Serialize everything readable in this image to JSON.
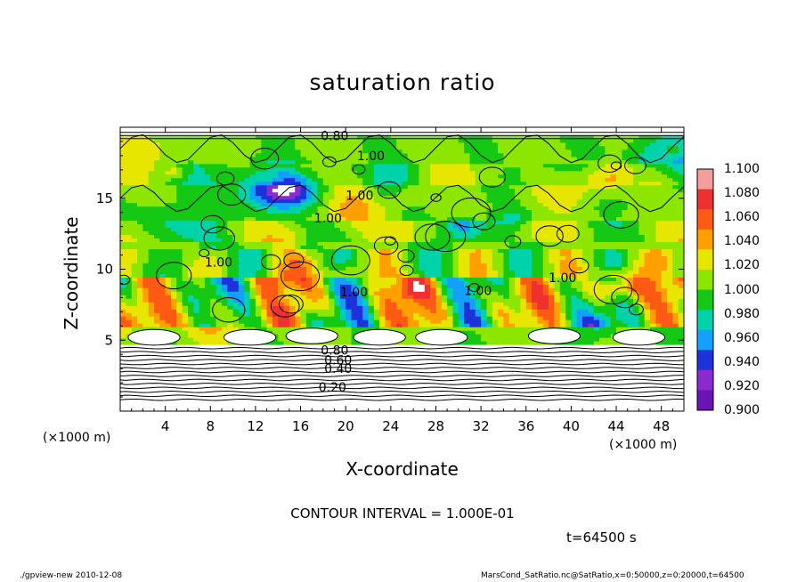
{
  "chart_data": {
    "type": "heatmap",
    "title": "saturation ratio",
    "xlabel": "X-coordinate",
    "ylabel": "Z-coordinate",
    "x_unit": "(×1000 m)",
    "xlim": [
      0,
      50
    ],
    "ylim": [
      0,
      20
    ],
    "x_ticks": [
      4,
      8,
      12,
      16,
      20,
      24,
      28,
      32,
      36,
      40,
      44,
      48
    ],
    "y_ticks": [
      5,
      10,
      15
    ],
    "colorbar": {
      "levels": [
        "1.100",
        "1.080",
        "1.060",
        "1.040",
        "1.020",
        "1.000",
        "0.980",
        "0.960",
        "0.940",
        "0.920",
        "0.900"
      ],
      "colors": [
        "#f59c9c",
        "#ee3030",
        "#ff5a14",
        "#ffa000",
        "#e6e600",
        "#8ce600",
        "#14c814",
        "#00d2aa",
        "#14a0ff",
        "#1e32dc",
        "#8c2ad2",
        "#6a14b4"
      ]
    },
    "contour_labels": [
      "0.80",
      "1.00",
      "1.00",
      "1.00",
      "1.00",
      "1.00",
      "1.00",
      "1.00",
      "0.80",
      "0.60",
      "0.40",
      "0.20"
    ],
    "contour_interval": "CONTOUR INTERVAL = 1.000E-01",
    "time": "t=64500 s"
  },
  "footer": {
    "left": "./gpview-new  2010-12-08",
    "right": "MarsCond_SatRatio.nc@SatRatio,x=0:50000,z=0:20000,t=64500"
  }
}
